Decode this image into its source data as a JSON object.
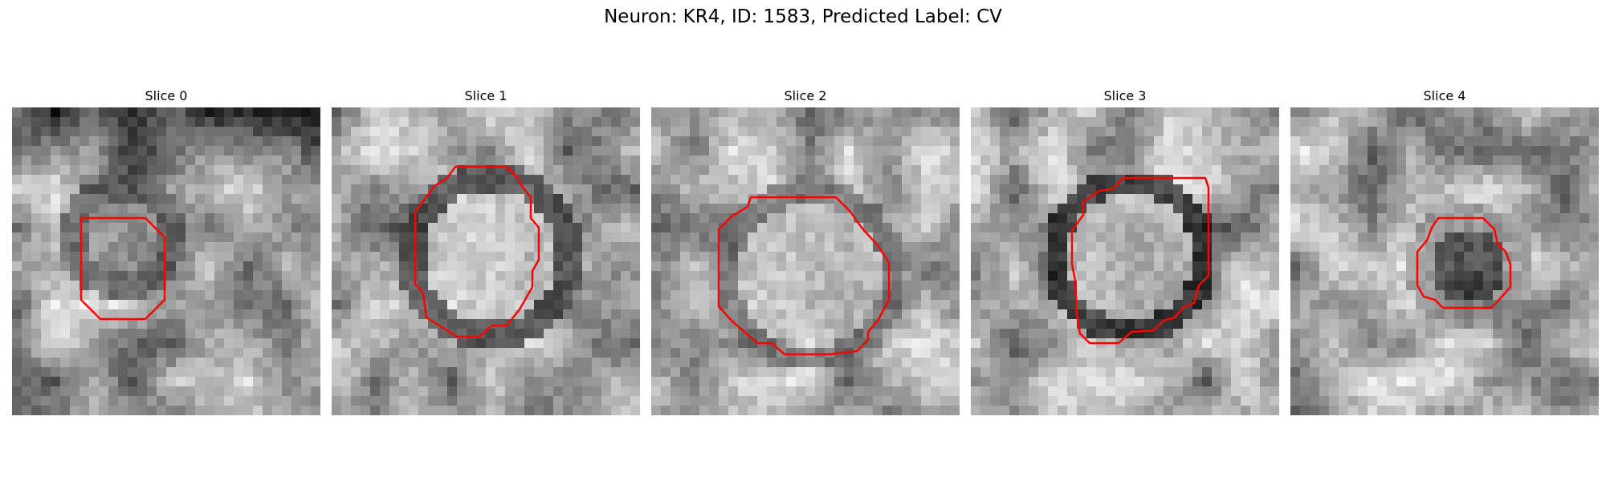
{
  "figure": {
    "title": "Neuron: KR4, ID: 1583, Predicted Label: CV"
  },
  "colors": {
    "contour": "#ff0000",
    "background": "#ffffff"
  },
  "panels": [
    {
      "title": "Slice 0"
    },
    {
      "title": "Slice 1"
    },
    {
      "title": "Slice 2"
    },
    {
      "title": "Slice 3"
    },
    {
      "title": "Slice 4"
    }
  ]
}
